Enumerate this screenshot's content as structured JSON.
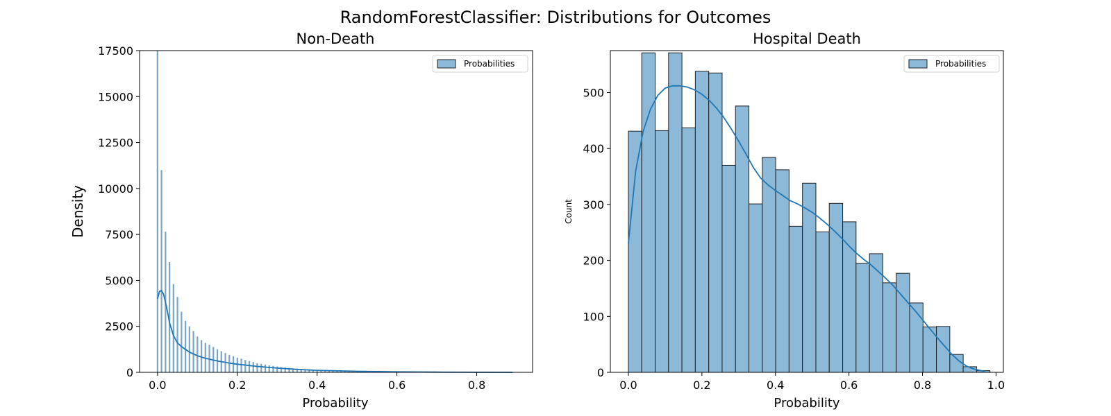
{
  "figure": {
    "title": "RandomForestClassifier: Distributions for Outcomes"
  },
  "colors": {
    "bar_fill": "#8db9d9",
    "bar_edge": "#1f1f1f",
    "thin_bar_fill": "#7aa5c8",
    "kde_line": "#1f77b4",
    "axes": "#000000"
  },
  "chart_data": [
    {
      "type": "bar",
      "title": "Non-Death",
      "xlabel": "Probability",
      "ylabel": "Density",
      "xlim": [
        -0.045,
        0.94
      ],
      "ylim": [
        0,
        17500
      ],
      "xticks": [
        0.0,
        0.2,
        0.4,
        0.6,
        0.8
      ],
      "xtick_labels": [
        "0.0",
        "0.2",
        "0.4",
        "0.6",
        "0.8"
      ],
      "yticks": [
        0,
        2500,
        5000,
        7500,
        10000,
        12500,
        15000,
        17500
      ],
      "ytick_labels": [
        "0",
        "2500",
        "5000",
        "7500",
        "10000",
        "12500",
        "15000",
        "17500"
      ],
      "legend": {
        "labels": [
          "Probabilities"
        ],
        "location": "upper right"
      },
      "grid": false,
      "bars": {
        "x": [
          0.0,
          0.01,
          0.02,
          0.03,
          0.04,
          0.05,
          0.06,
          0.07,
          0.08,
          0.09,
          0.1,
          0.11,
          0.12,
          0.13,
          0.14,
          0.15,
          0.16,
          0.17,
          0.18,
          0.19,
          0.2,
          0.21,
          0.22,
          0.23,
          0.24,
          0.25,
          0.26,
          0.27,
          0.28,
          0.29,
          0.3,
          0.31,
          0.32,
          0.33,
          0.34,
          0.35,
          0.36,
          0.37,
          0.38,
          0.39,
          0.4,
          0.41,
          0.42,
          0.43,
          0.44,
          0.45,
          0.46,
          0.47,
          0.48,
          0.49,
          0.5,
          0.52,
          0.54,
          0.56,
          0.58,
          0.6
        ],
        "values": [
          17500,
          11000,
          7650,
          6000,
          4800,
          4100,
          3300,
          2800,
          2500,
          2250,
          1950,
          1750,
          1600,
          1500,
          1380,
          1250,
          1150,
          1050,
          950,
          880,
          800,
          740,
          680,
          620,
          560,
          500,
          460,
          420,
          380,
          350,
          320,
          290,
          260,
          240,
          220,
          200,
          180,
          165,
          150,
          140,
          130,
          120,
          110,
          100,
          90,
          80,
          72,
          65,
          58,
          52,
          46,
          38,
          30,
          24,
          18,
          14
        ]
      },
      "kde": {
        "x": [
          0.0,
          0.005,
          0.01,
          0.015,
          0.02,
          0.025,
          0.03,
          0.04,
          0.05,
          0.06,
          0.08,
          0.1,
          0.12,
          0.15,
          0.18,
          0.2,
          0.25,
          0.3,
          0.35,
          0.4,
          0.5,
          0.6,
          0.7,
          0.8,
          0.89
        ],
        "y": [
          4000,
          4400,
          4450,
          4250,
          3800,
          3300,
          2700,
          2000,
          1600,
          1400,
          1100,
          900,
          760,
          620,
          500,
          440,
          320,
          230,
          160,
          110,
          55,
          25,
          10,
          4,
          0
        ]
      }
    },
    {
      "type": "bar",
      "title": "Hospital Death",
      "xlabel": "Probability",
      "ylabel": "Count",
      "xlim": [
        -0.049,
        1.02
      ],
      "ylim": [
        0,
        575
      ],
      "xticks": [
        0.0,
        0.2,
        0.4,
        0.6,
        0.8,
        1.0
      ],
      "xtick_labels": [
        "0.0",
        "0.2",
        "0.4",
        "0.6",
        "0.8",
        "1.0"
      ],
      "yticks": [
        0,
        100,
        200,
        300,
        400,
        500
      ],
      "ytick_labels": [
        "0",
        "100",
        "200",
        "300",
        "400",
        "500"
      ],
      "legend": {
        "labels": [
          "Probabilities"
        ],
        "location": "upper right"
      },
      "grid": false,
      "bins": {
        "edges": [
          0.0,
          0.0364,
          0.0729,
          0.1093,
          0.1457,
          0.1821,
          0.2186,
          0.255,
          0.2914,
          0.3279,
          0.3643,
          0.4007,
          0.4371,
          0.4736,
          0.51,
          0.5464,
          0.5829,
          0.6193,
          0.6557,
          0.6921,
          0.7286,
          0.765,
          0.8014,
          0.8379,
          0.8743,
          0.9107,
          0.9471,
          0.9836
        ],
        "values": [
          431,
          571,
          432,
          571,
          437,
          538,
          535,
          370,
          476,
          301,
          384,
          362,
          261,
          338,
          251,
          302,
          269,
          195,
          212,
          160,
          177,
          124,
          81,
          82,
          32,
          10,
          3
        ]
      },
      "kde": {
        "x": [
          0.0,
          0.02,
          0.04,
          0.06,
          0.08,
          0.1,
          0.12,
          0.14,
          0.16,
          0.18,
          0.2,
          0.22,
          0.24,
          0.26,
          0.28,
          0.3,
          0.32,
          0.34,
          0.36,
          0.38,
          0.4,
          0.42,
          0.44,
          0.46,
          0.48,
          0.5,
          0.52,
          0.54,
          0.56,
          0.58,
          0.6,
          0.62,
          0.64,
          0.66,
          0.68,
          0.7,
          0.72,
          0.74,
          0.76,
          0.78,
          0.8,
          0.82,
          0.84,
          0.86,
          0.88,
          0.9,
          0.92,
          0.94,
          0.96,
          0.97
        ],
        "y": [
          230,
          360,
          430,
          470,
          495,
          508,
          512,
          512,
          510,
          505,
          497,
          486,
          472,
          455,
          435,
          413,
          390,
          366,
          347,
          335,
          325,
          316,
          307,
          301,
          294,
          286,
          276,
          265,
          253,
          240,
          226,
          213,
          202,
          192,
          180,
          168,
          155,
          140,
          125,
          110,
          94,
          78,
          62,
          47,
          32,
          20,
          11,
          6,
          3,
          2
        ]
      }
    }
  ]
}
